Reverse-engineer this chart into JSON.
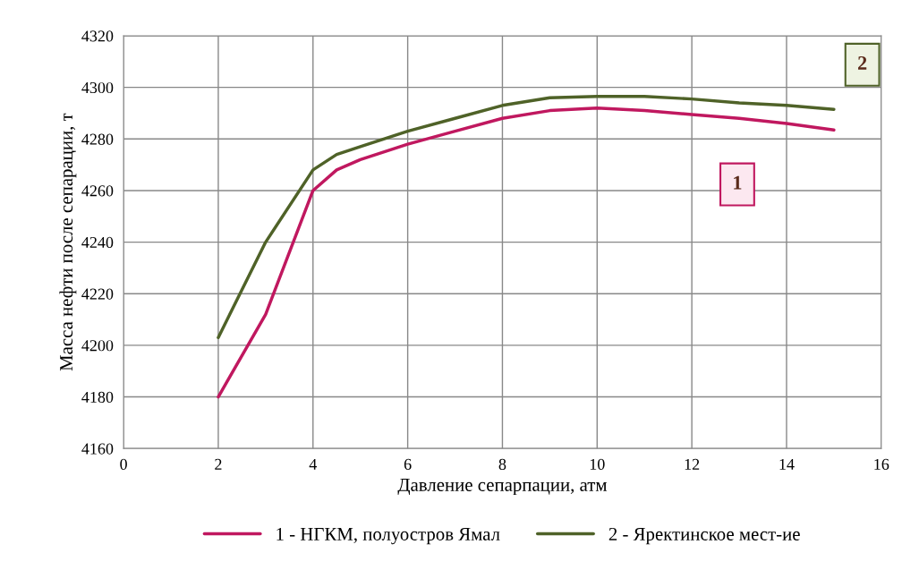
{
  "chart_data": {
    "type": "line",
    "xlabel": "Давление сепарпации, атм",
    "ylabel": "Масса нефти после сепарации, т",
    "xlim": [
      0,
      16
    ],
    "xticks": [
      0,
      2,
      4,
      6,
      8,
      10,
      12,
      14,
      16
    ],
    "ylim": [
      4160,
      4320
    ],
    "yticks": [
      4160,
      4180,
      4200,
      4220,
      4240,
      4260,
      4280,
      4300,
      4320
    ],
    "grid": true,
    "legend": "bottom",
    "marker": "none",
    "line_style": "solid",
    "series": [
      {
        "name": "1 - НГКМ, полуостров Ямал",
        "color": "#c0185f",
        "x": [
          2,
          3,
          4,
          4.5,
          5,
          6,
          7,
          8,
          9,
          10,
          11,
          12,
          13,
          14,
          15
        ],
        "values": [
          4180,
          4212,
          4260,
          4268,
          4272,
          4278,
          4283,
          4288,
          4291,
          4292,
          4291,
          4289.5,
          4288,
          4286,
          4283.5
        ]
      },
      {
        "name": "2 - Яректинское мест-ие",
        "color": "#4f6228",
        "x": [
          2,
          3,
          4,
          4.5,
          5,
          6,
          7,
          8,
          9,
          10,
          11,
          12,
          13,
          14,
          15
        ],
        "values": [
          4203,
          4240,
          4268,
          4274,
          4277,
          4283,
          4288,
          4293,
          4296,
          4296.5,
          4296.5,
          4295.5,
          4294,
          4293,
          4291.5
        ]
      }
    ],
    "annotations": [
      "1",
      "2"
    ]
  }
}
